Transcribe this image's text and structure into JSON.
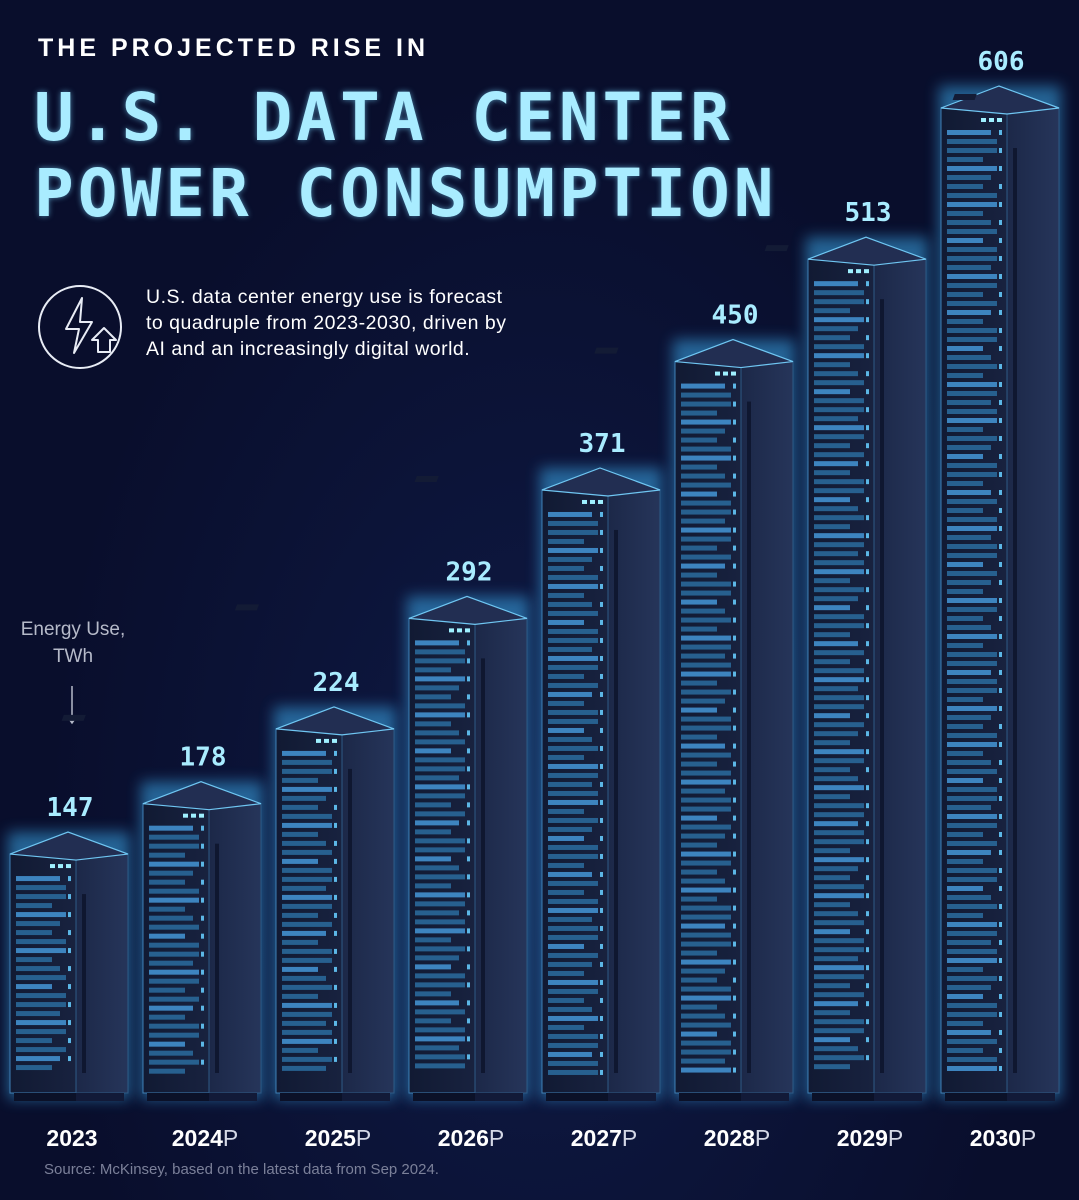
{
  "header": {
    "subtitle": "THE PROJECTED RISE IN",
    "title_line1": "U.S. DATA CENTER",
    "title_line2": "POWER CONSUMPTION"
  },
  "description": "U.S. data center energy use is forecast to quadruple from 2023-2030, driven by AI and an increasingly digital world.",
  "icon": "lightning-up-arrow-icon",
  "unit_label": "Energy Use, TWh",
  "unit_arrow_icon": "down-arrow-icon",
  "source": "Source: McKinsey, based on the latest data from Sep 2024.",
  "colors": {
    "background": "#090e2c",
    "accent": "#a9ecff",
    "glow": "#3aa8e8",
    "rack_front": "#151d35",
    "rack_side": "#1d2948",
    "server_slot": "#2d6a9e"
  },
  "chart_data": {
    "type": "bar",
    "title": "U.S. DATA CENTER POWER CONSUMPTION",
    "ylabel": "Energy Use, TWh",
    "categories": [
      "2023",
      "2024",
      "2025",
      "2026",
      "2027",
      "2028",
      "2029",
      "2030"
    ],
    "category_suffix": [
      "",
      "P",
      "P",
      "P",
      "P",
      "P",
      "P",
      "P"
    ],
    "values": [
      147,
      178,
      224,
      292,
      371,
      450,
      513,
      606
    ],
    "ylim": [
      0,
      606
    ]
  }
}
